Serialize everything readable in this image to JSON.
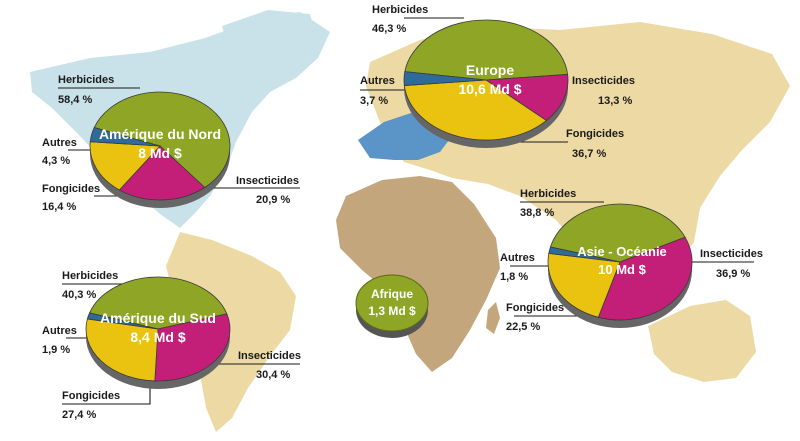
{
  "map": {
    "regions": [
      {
        "key": "na",
        "name": "Amérique du Nord",
        "amount": "8 Md $",
        "slices": [
          {
            "category": "Herbicides",
            "value": 58.4,
            "label": "58,4 %"
          },
          {
            "category": "Insecticides",
            "value": 20.9,
            "label": "20,9 %"
          },
          {
            "category": "Fongicides",
            "value": 16.4,
            "label": "16,4 %"
          },
          {
            "category": "Autres",
            "value": 4.3,
            "label": "4,3 %"
          }
        ]
      },
      {
        "key": "eu",
        "name": "Europe",
        "amount": "10,6 Md $",
        "slices": [
          {
            "category": "Herbicides",
            "value": 46.3,
            "label": "46,3 %"
          },
          {
            "category": "Insecticides",
            "value": 13.3,
            "label": "13,3 %"
          },
          {
            "category": "Fongicides",
            "value": 36.7,
            "label": "36,7 %"
          },
          {
            "category": "Autres",
            "value": 3.7,
            "label": "3,7 %"
          }
        ]
      },
      {
        "key": "sa",
        "name": "Amérique du Sud",
        "amount": "8,4 Md $",
        "slices": [
          {
            "category": "Herbicides",
            "value": 40.3,
            "label": "40,3 %"
          },
          {
            "category": "Insecticides",
            "value": 30.4,
            "label": "30,4 %"
          },
          {
            "category": "Fongicides",
            "value": 27.4,
            "label": "27,4 %"
          },
          {
            "category": "Autres",
            "value": 1.9,
            "label": "1,9 %"
          }
        ]
      },
      {
        "key": "as",
        "name": "Asie - Océanie",
        "amount": "10 Md $",
        "slices": [
          {
            "category": "Herbicides",
            "value": 38.8,
            "label": "38,8 %"
          },
          {
            "category": "Insecticides",
            "value": 36.9,
            "label": "36,9 %"
          },
          {
            "category": "Fongicides",
            "value": 22.5,
            "label": "22,5 %"
          },
          {
            "category": "Autres",
            "value": 1.8,
            "label": "1,8 %"
          }
        ]
      }
    ],
    "africa": {
      "name": "Afrique",
      "amount": "1,3 Md $"
    },
    "colors": {
      "Herbicides": "#8ea525",
      "Insecticides": "#c41f78",
      "Fongicides": "#e9c30f",
      "Autres": "#2e6a9a",
      "africa_bubble": "#8ea525",
      "land_warm": "#ecd9a4",
      "land_brown": "#c4a67c",
      "land_blue": "#c9e2e9",
      "europe_blue": "#5b95c8"
    }
  }
}
